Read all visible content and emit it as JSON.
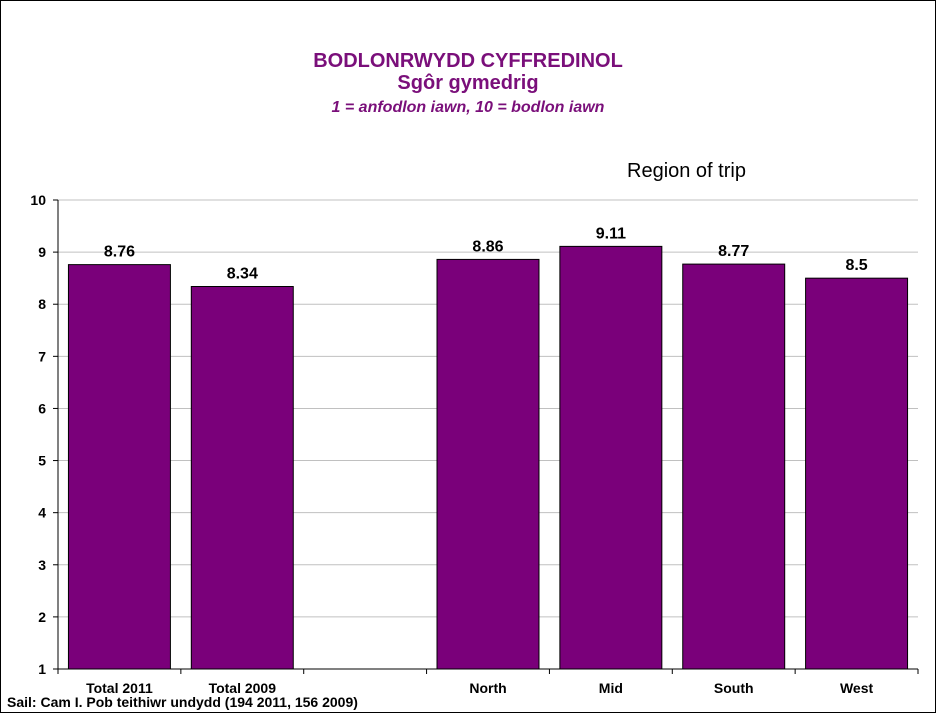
{
  "title": {
    "line1": "BODLONRWYDD CYFFREDINOL",
    "line2": "Sgôr gymedrig",
    "line3": "1 = anfodlon iawn, 10 = bodlon iawn"
  },
  "region_label": "Region of trip",
  "source_note": "Sail: Cam I.  Pob teithiwr undydd (194 2011, 156 2009)",
  "colors": {
    "bar": "#7a007a",
    "title": "#7a0f7a",
    "grid": "#c0c0c0"
  },
  "chart_data": {
    "type": "bar",
    "categories": [
      "Total 2011",
      "Total 2009",
      "",
      "North",
      "Mid",
      "South",
      "West"
    ],
    "values": [
      8.76,
      8.34,
      null,
      8.86,
      9.11,
      8.77,
      8.5
    ],
    "data_labels": [
      "8.76",
      "8.34",
      "",
      "8.86",
      "9.11",
      "8.77",
      "8.5"
    ],
    "ylim": [
      1,
      10
    ],
    "yticks": [
      1,
      2,
      3,
      4,
      5,
      6,
      7,
      8,
      9,
      10
    ],
    "grid": true,
    "legend": "none"
  }
}
